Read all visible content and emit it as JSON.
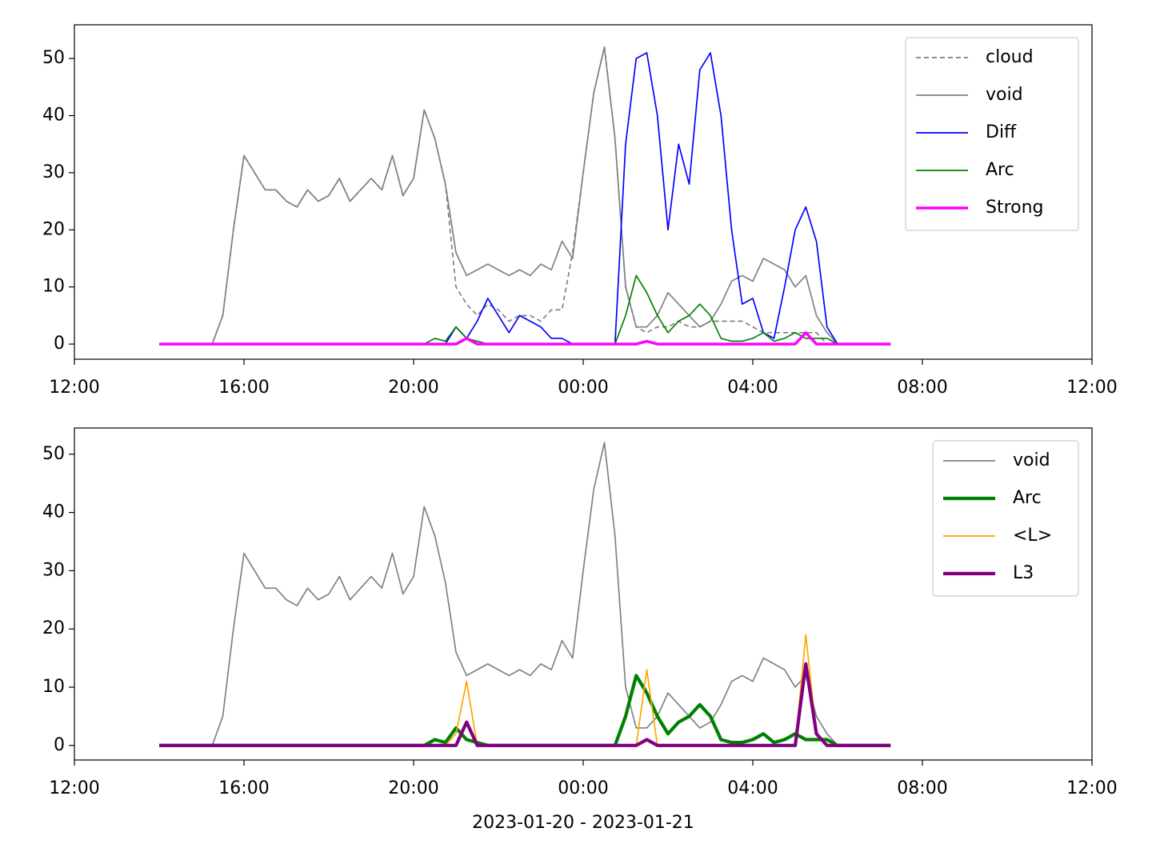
{
  "chart_data": [
    {
      "type": "line",
      "x": [
        2,
        2.25,
        2.5,
        2.75,
        3,
        3.25,
        3.5,
        3.75,
        4,
        4.25,
        4.5,
        4.75,
        5,
        5.25,
        5.5,
        5.75,
        6,
        6.25,
        6.5,
        6.75,
        7,
        7.25,
        7.5,
        7.75,
        8,
        8.25,
        8.5,
        8.75,
        9,
        9.25,
        9.5,
        9.75,
        10,
        10.25,
        10.5,
        10.75,
        11,
        11.25,
        11.5,
        11.75,
        12,
        12.25,
        12.5,
        12.75,
        13,
        13.25,
        13.5,
        13.75,
        14,
        14.25,
        14.5,
        14.75,
        15,
        15.25,
        15.5,
        15.75,
        16,
        16.25,
        16.5,
        16.75,
        17,
        17.25,
        17.5,
        17.75,
        18,
        18.25,
        18.5,
        18.75,
        19,
        19.25
      ],
      "series": [
        {
          "name": "cloud",
          "color": "#808080",
          "linewidth": 1.2,
          "dashed": true,
          "values": [
            0,
            0,
            0,
            0,
            0,
            0,
            5,
            20,
            33,
            30,
            27,
            27,
            25,
            24,
            27,
            25,
            26,
            29,
            25,
            27,
            29,
            27,
            33,
            26,
            29,
            41,
            36,
            28,
            10,
            7,
            5,
            7,
            6,
            4,
            5,
            5,
            4,
            6,
            6,
            16,
            30,
            44,
            52,
            36,
            10,
            3,
            2,
            3,
            3,
            4,
            3,
            3,
            4,
            4,
            4,
            4,
            3,
            2,
            2,
            2,
            2,
            2,
            2,
            0,
            0,
            0,
            0,
            0,
            0,
            0
          ]
        },
        {
          "name": "void",
          "color": "#808080",
          "linewidth": 1.2,
          "dashed": false,
          "values": [
            0,
            0,
            0,
            0,
            0,
            0,
            5,
            20,
            33,
            30,
            27,
            27,
            25,
            24,
            27,
            25,
            26,
            29,
            25,
            27,
            29,
            27,
            33,
            26,
            29,
            41,
            36,
            28,
            16,
            12,
            13,
            14,
            13,
            12,
            13,
            12,
            14,
            13,
            18,
            15,
            30,
            44,
            52,
            36,
            10,
            3,
            3,
            5,
            9,
            7,
            5,
            3,
            4,
            7,
            11,
            12,
            11,
            15,
            14,
            13,
            10,
            12,
            5,
            2,
            0,
            0,
            0,
            0,
            0,
            0
          ]
        },
        {
          "name": "Diff",
          "color": "#0000ff",
          "linewidth": 1.2,
          "dashed": false,
          "values": [
            0,
            0,
            0,
            0,
            0,
            0,
            0,
            0,
            0,
            0,
            0,
            0,
            0,
            0,
            0,
            0,
            0,
            0,
            0,
            0,
            0,
            0,
            0,
            0,
            0,
            0,
            0,
            0,
            3,
            1,
            4,
            8,
            5,
            2,
            5,
            4,
            3,
            1,
            1,
            0,
            0,
            0,
            0,
            0,
            35,
            50,
            51,
            40,
            20,
            35,
            28,
            48,
            51,
            40,
            20,
            7,
            8,
            2,
            1,
            10,
            20,
            24,
            18,
            3,
            0,
            0,
            0,
            0,
            0,
            0
          ]
        },
        {
          "name": "Arc",
          "color": "#008000",
          "linewidth": 1.2,
          "dashed": false,
          "values": [
            0,
            0,
            0,
            0,
            0,
            0,
            0,
            0,
            0,
            0,
            0,
            0,
            0,
            0,
            0,
            0,
            0,
            0,
            0,
            0,
            0,
            0,
            0,
            0,
            0,
            0,
            1,
            0.5,
            3,
            1,
            0.5,
            0,
            0,
            0,
            0,
            0,
            0,
            0,
            0,
            0,
            0,
            0,
            0,
            0,
            5,
            12,
            9,
            5,
            2,
            4,
            5,
            7,
            5,
            1,
            0.5,
            0.5,
            1,
            2,
            0.5,
            1,
            2,
            1,
            1,
            1,
            0,
            0,
            0,
            0,
            0,
            0
          ]
        },
        {
          "name": "Strong",
          "color": "#ff00ff",
          "linewidth": 2.5,
          "dashed": false,
          "values": [
            0,
            0,
            0,
            0,
            0,
            0,
            0,
            0,
            0,
            0,
            0,
            0,
            0,
            0,
            0,
            0,
            0,
            0,
            0,
            0,
            0,
            0,
            0,
            0,
            0,
            0,
            0,
            0,
            0,
            1,
            0,
            0,
            0,
            0,
            0,
            0,
            0,
            0,
            0,
            0,
            0,
            0,
            0,
            0,
            0,
            0,
            0.5,
            0,
            0,
            0,
            0,
            0,
            0,
            0,
            0,
            0,
            0,
            0,
            0,
            0,
            0,
            2,
            0,
            0,
            0,
            0,
            0,
            0,
            0,
            0
          ]
        }
      ],
      "xlim": [
        0,
        24
      ],
      "xticks": [
        {
          "value": 0,
          "label": "12:00"
        },
        {
          "value": 4,
          "label": "16:00"
        },
        {
          "value": 8,
          "label": "20:00"
        },
        {
          "value": 12,
          "label": "00:00"
        },
        {
          "value": 16,
          "label": "04:00"
        },
        {
          "value": 20,
          "label": "08:00"
        },
        {
          "value": 24,
          "label": "12:00"
        }
      ],
      "ylim": [
        -2.65,
        55.9
      ],
      "yticks": [
        0,
        10,
        20,
        30,
        40,
        50
      ],
      "legend": "upper right"
    },
    {
      "type": "line",
      "x": [
        2,
        2.25,
        2.5,
        2.75,
        3,
        3.25,
        3.5,
        3.75,
        4,
        4.25,
        4.5,
        4.75,
        5,
        5.25,
        5.5,
        5.75,
        6,
        6.25,
        6.5,
        6.75,
        7,
        7.25,
        7.5,
        7.75,
        8,
        8.25,
        8.5,
        8.75,
        9,
        9.25,
        9.5,
        9.75,
        10,
        10.25,
        10.5,
        10.75,
        11,
        11.25,
        11.5,
        11.75,
        12,
        12.25,
        12.5,
        12.75,
        13,
        13.25,
        13.5,
        13.75,
        14,
        14.25,
        14.5,
        14.75,
        15,
        15.25,
        15.5,
        15.75,
        16,
        16.25,
        16.5,
        16.75,
        17,
        17.25,
        17.5,
        17.75,
        18,
        18.25,
        18.5,
        18.75,
        19,
        19.25
      ],
      "series": [
        {
          "name": "void",
          "color": "#808080",
          "linewidth": 1.2,
          "dashed": false,
          "values": [
            0,
            0,
            0,
            0,
            0,
            0,
            5,
            20,
            33,
            30,
            27,
            27,
            25,
            24,
            27,
            25,
            26,
            29,
            25,
            27,
            29,
            27,
            33,
            26,
            29,
            41,
            36,
            28,
            16,
            12,
            13,
            14,
            13,
            12,
            13,
            12,
            14,
            13,
            18,
            15,
            30,
            44,
            52,
            36,
            10,
            3,
            3,
            5,
            9,
            7,
            5,
            3,
            4,
            7,
            11,
            12,
            11,
            15,
            14,
            13,
            10,
            12,
            5,
            2,
            0,
            0,
            0,
            0,
            0,
            0
          ]
        },
        {
          "name": "Arc",
          "color": "#008000",
          "linewidth": 3,
          "dashed": false,
          "values": [
            0,
            0,
            0,
            0,
            0,
            0,
            0,
            0,
            0,
            0,
            0,
            0,
            0,
            0,
            0,
            0,
            0,
            0,
            0,
            0,
            0,
            0,
            0,
            0,
            0,
            0,
            1,
            0.5,
            3,
            1,
            0.5,
            0,
            0,
            0,
            0,
            0,
            0,
            0,
            0,
            0,
            0,
            0,
            0,
            0,
            5,
            12,
            9,
            5,
            2,
            4,
            5,
            7,
            5,
            1,
            0.5,
            0.5,
            1,
            2,
            0.5,
            1,
            2,
            1,
            1,
            1,
            0,
            0,
            0,
            0,
            0,
            0
          ]
        },
        {
          "name": "<L>",
          "color": "#ffa500",
          "linewidth": 1.2,
          "dashed": false,
          "values": [
            0,
            0,
            0,
            0,
            0,
            0,
            0,
            0,
            0,
            0,
            0,
            0,
            0,
            0,
            0,
            0,
            0,
            0,
            0,
            0,
            0,
            0,
            0,
            0,
            0,
            0,
            0,
            0,
            2,
            11,
            0,
            0,
            0,
            0,
            0,
            0,
            0,
            0,
            0,
            0,
            0,
            0,
            0,
            0,
            0,
            0,
            13,
            0,
            0,
            0,
            0,
            0,
            0,
            0,
            0,
            0,
            0,
            0,
            0,
            0,
            0,
            19,
            2,
            0,
            0,
            0,
            0,
            0,
            0,
            0
          ]
        },
        {
          "name": "L3",
          "color": "#800080",
          "linewidth": 3,
          "dashed": false,
          "values": [
            0,
            0,
            0,
            0,
            0,
            0,
            0,
            0,
            0,
            0,
            0,
            0,
            0,
            0,
            0,
            0,
            0,
            0,
            0,
            0,
            0,
            0,
            0,
            0,
            0,
            0,
            0,
            0,
            0,
            4,
            0,
            0,
            0,
            0,
            0,
            0,
            0,
            0,
            0,
            0,
            0,
            0,
            0,
            0,
            0,
            0,
            1,
            0,
            0,
            0,
            0,
            0,
            0,
            0,
            0,
            0,
            0,
            0,
            0,
            0,
            0,
            14,
            2,
            0,
            0,
            0,
            0,
            0,
            0,
            0
          ]
        }
      ],
      "xlim": [
        0,
        24
      ],
      "xticks": [
        {
          "value": 0,
          "label": "12:00"
        },
        {
          "value": 4,
          "label": "16:00"
        },
        {
          "value": 8,
          "label": "20:00"
        },
        {
          "value": 12,
          "label": "00:00"
        },
        {
          "value": 16,
          "label": "04:00"
        },
        {
          "value": 20,
          "label": "08:00"
        },
        {
          "value": 24,
          "label": "12:00"
        }
      ],
      "ylim": [
        -2.5,
        54.5
      ],
      "yticks": [
        0,
        10,
        20,
        30,
        40,
        50
      ],
      "legend": "upper right",
      "xlabel": "2023-01-20 - 2023-01-21"
    }
  ]
}
